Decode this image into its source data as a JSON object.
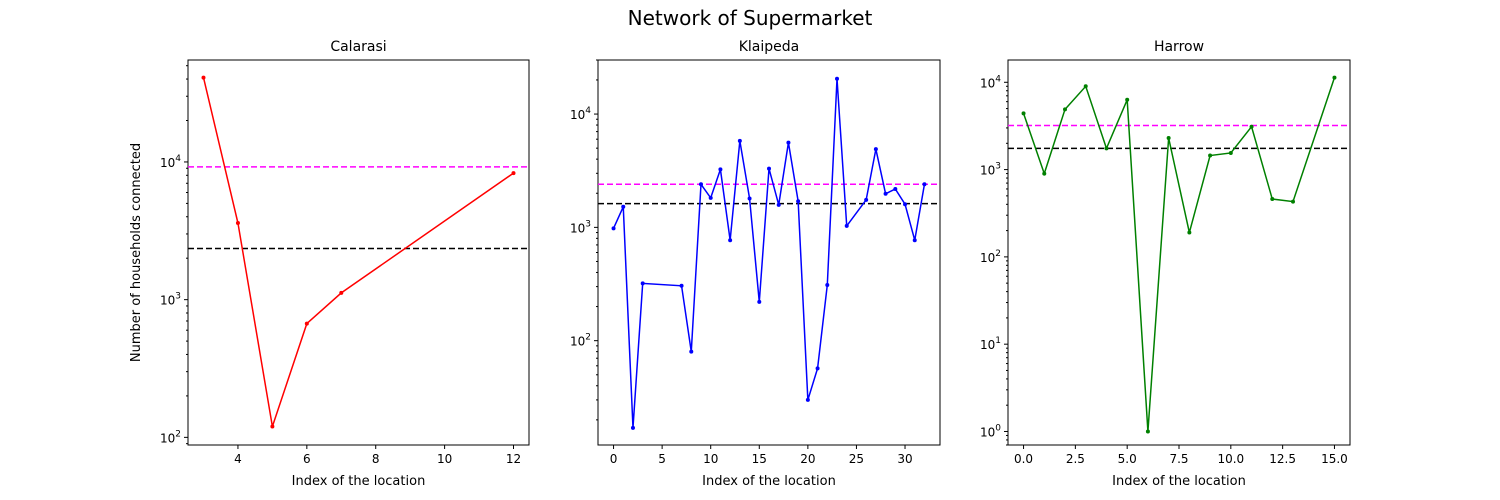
{
  "figure": {
    "title": "Network of Supermarket"
  },
  "chart_data": [
    {
      "type": "line",
      "title": "Calarasi",
      "xlabel": "Index of the location",
      "ylabel": "Number of households connected",
      "yscale": "log",
      "xlim": [
        2.55,
        12.45
      ],
      "ylim": [
        88,
        55000
      ],
      "xticks": [
        4,
        6,
        8,
        10,
        12
      ],
      "xtick_labels": [
        "4",
        "6",
        "8",
        "10",
        "12"
      ],
      "yticks": [
        100,
        1000,
        10000
      ],
      "ytick_labels": [
        "10^2",
        "10^3",
        "10^4"
      ],
      "series": [
        {
          "color": "#ff0000",
          "x": [
            3,
            4,
            5,
            6,
            7,
            12
          ],
          "y": [
            41000,
            3600,
            120,
            670,
            1120,
            8300
          ]
        }
      ],
      "hlines": [
        {
          "y": 9200,
          "color": "#ff00ff",
          "style": "dashed"
        },
        {
          "y": 2350,
          "color": "#000000",
          "style": "dashed"
        }
      ]
    },
    {
      "type": "line",
      "title": "Klaipeda",
      "xlabel": "Index of the location",
      "ylabel": "",
      "yscale": "log",
      "xlim": [
        -1.6,
        33.6
      ],
      "ylim": [
        12,
        30000
      ],
      "xticks": [
        0,
        5,
        10,
        15,
        20,
        25,
        30
      ],
      "xtick_labels": [
        "0",
        "5",
        "10",
        "15",
        "20",
        "25",
        "30"
      ],
      "yticks": [
        100,
        1000,
        10000
      ],
      "ytick_labels": [
        "10^2",
        "10^3",
        "10^4"
      ],
      "series": [
        {
          "color": "#0000ff",
          "x": [
            0,
            1,
            2,
            3,
            7,
            8,
            9,
            10,
            11,
            12,
            13,
            14,
            15,
            16,
            17,
            18,
            19,
            20,
            21,
            22,
            23,
            24,
            26,
            27,
            28,
            29,
            30,
            31,
            32
          ],
          "y": [
            980,
            1520,
            17,
            320,
            305,
            80,
            2400,
            1820,
            3250,
            770,
            5800,
            1800,
            220,
            3300,
            1580,
            5600,
            1700,
            30,
            57,
            310,
            20500,
            1030,
            1750,
            4900,
            1980,
            2180,
            1600,
            770,
            2400
          ]
        }
      ],
      "hlines": [
        {
          "y": 2400,
          "color": "#ff00ff",
          "style": "dashed"
        },
        {
          "y": 1620,
          "color": "#000000",
          "style": "dashed"
        }
      ]
    },
    {
      "type": "line",
      "title": "Harrow",
      "xlabel": "Index of the location",
      "ylabel": "",
      "yscale": "log",
      "xlim": [
        -0.75,
        15.75
      ],
      "ylim": [
        0.7,
        18000
      ],
      "xticks": [
        0,
        2.5,
        5,
        7.5,
        10,
        12.5,
        15
      ],
      "xtick_labels": [
        "0.0",
        "2.5",
        "5.0",
        "7.5",
        "10.0",
        "12.5",
        "15.0"
      ],
      "yticks": [
        1,
        10,
        100,
        1000,
        10000
      ],
      "ytick_labels": [
        "10^0",
        "10^1",
        "10^2",
        "10^3",
        "10^4"
      ],
      "series": [
        {
          "color": "#008000",
          "x": [
            0,
            1,
            2,
            3,
            4,
            5,
            6,
            7,
            8,
            9,
            10,
            11,
            12,
            13,
            15
          ],
          "y": [
            4400,
            900,
            4900,
            9000,
            1750,
            6300,
            1,
            2300,
            190,
            1450,
            1550,
            3100,
            460,
            430,
            11300
          ]
        }
      ],
      "hlines": [
        {
          "y": 3200,
          "color": "#ff00ff",
          "style": "dashed"
        },
        {
          "y": 1750,
          "color": "#000000",
          "style": "dashed"
        }
      ]
    }
  ]
}
